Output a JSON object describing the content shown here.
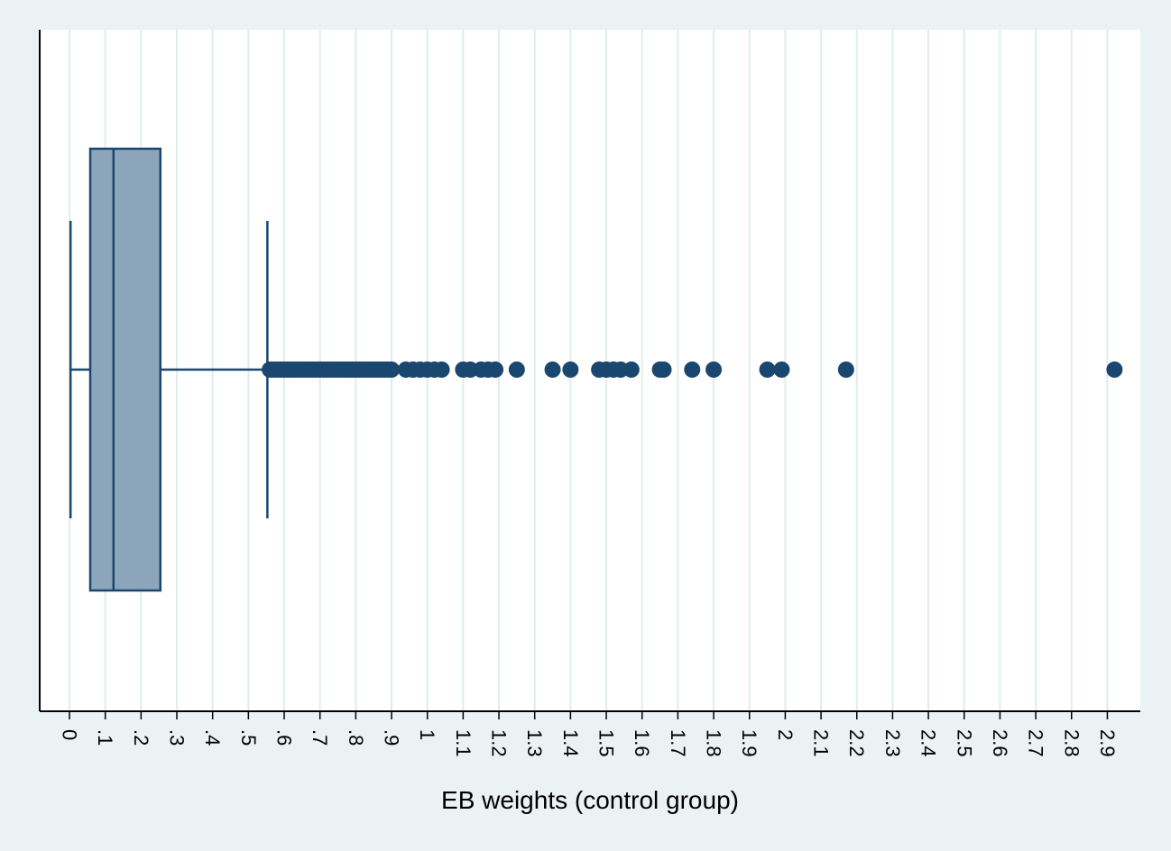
{
  "chart_data": {
    "type": "box",
    "orientation": "horizontal",
    "title": "",
    "xlabel": "EB weights (control group)",
    "ylabel": "",
    "xlim": [
      0,
      2.9
    ],
    "grid": true,
    "x_ticks": [
      {
        "value": 0,
        "label": "0"
      },
      {
        "value": 0.1,
        "label": ".1"
      },
      {
        "value": 0.2,
        "label": ".2"
      },
      {
        "value": 0.3,
        "label": ".3"
      },
      {
        "value": 0.4,
        "label": ".4"
      },
      {
        "value": 0.5,
        "label": ".5"
      },
      {
        "value": 0.6,
        "label": ".6"
      },
      {
        "value": 0.7,
        "label": ".7"
      },
      {
        "value": 0.8,
        "label": ".8"
      },
      {
        "value": 0.9,
        "label": ".9"
      },
      {
        "value": 1.0,
        "label": "1"
      },
      {
        "value": 1.1,
        "label": "1.1"
      },
      {
        "value": 1.2,
        "label": "1.2"
      },
      {
        "value": 1.3,
        "label": "1.3"
      },
      {
        "value": 1.4,
        "label": "1.4"
      },
      {
        "value": 1.5,
        "label": "1.5"
      },
      {
        "value": 1.6,
        "label": "1.6"
      },
      {
        "value": 1.7,
        "label": "1.7"
      },
      {
        "value": 1.8,
        "label": "1.8"
      },
      {
        "value": 1.9,
        "label": "1.9"
      },
      {
        "value": 2.0,
        "label": "2"
      },
      {
        "value": 2.1,
        "label": "2.1"
      },
      {
        "value": 2.2,
        "label": "2.2"
      },
      {
        "value": 2.3,
        "label": "2.3"
      },
      {
        "value": 2.4,
        "label": "2.4"
      },
      {
        "value": 2.5,
        "label": "2.5"
      },
      {
        "value": 2.6,
        "label": "2.6"
      },
      {
        "value": 2.7,
        "label": "2.7"
      },
      {
        "value": 2.8,
        "label": "2.8"
      },
      {
        "value": 2.9,
        "label": "2.9"
      }
    ],
    "box": {
      "whisker_low": 0.003,
      "q1": 0.058,
      "median": 0.123,
      "q3": 0.254,
      "whisker_high": 0.553
    },
    "outliers": [
      0.56,
      0.57,
      0.58,
      0.59,
      0.6,
      0.61,
      0.62,
      0.63,
      0.64,
      0.65,
      0.66,
      0.67,
      0.68,
      0.69,
      0.7,
      0.71,
      0.72,
      0.73,
      0.74,
      0.75,
      0.76,
      0.77,
      0.78,
      0.79,
      0.8,
      0.81,
      0.82,
      0.83,
      0.84,
      0.85,
      0.86,
      0.87,
      0.88,
      0.89,
      0.9,
      0.94,
      0.96,
      0.98,
      1.0,
      1.02,
      1.04,
      1.1,
      1.12,
      1.15,
      1.17,
      1.19,
      1.25,
      1.35,
      1.4,
      1.48,
      1.5,
      1.52,
      1.54,
      1.57,
      1.65,
      1.66,
      1.74,
      1.8,
      1.95,
      1.99,
      2.17,
      2.92
    ],
    "colors": {
      "background": "#eaf2f3",
      "plot_background": "#ffffff",
      "grid": "#e2ecec",
      "box_fill": "#8ca5ba",
      "box_stroke": "#1a476f",
      "marker": "#1a476f",
      "axis": "#000000"
    }
  }
}
